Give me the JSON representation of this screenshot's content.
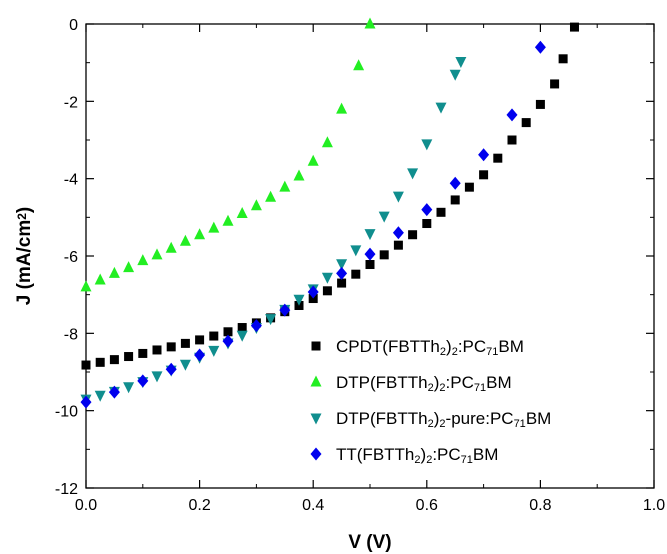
{
  "chart_data": {
    "type": "scatter",
    "xlabel": "V (V)",
    "ylabel": "J (mA/cm²)",
    "xlim": [
      0.0,
      1.0
    ],
    "ylim": [
      -12,
      0
    ],
    "xticks": [
      "0.0",
      "0.2",
      "0.4",
      "0.6",
      "0.8",
      "1.0"
    ],
    "yticks": [
      "0",
      "-2",
      "-4",
      "-6",
      "-8",
      "-10",
      "-12"
    ],
    "legend_position": "bottom-right",
    "grid": false,
    "series": [
      {
        "name": "CPDT(FBTTh2)2:PC71BM",
        "marker": "square",
        "color": "#000000",
        "x": [
          0,
          0.025,
          0.05,
          0.075,
          0.1,
          0.125,
          0.15,
          0.175,
          0.2,
          0.225,
          0.25,
          0.275,
          0.3,
          0.325,
          0.35,
          0.375,
          0.4,
          0.425,
          0.45,
          0.475,
          0.5,
          0.525,
          0.55,
          0.575,
          0.6,
          0.625,
          0.65,
          0.675,
          0.7,
          0.725,
          0.75,
          0.775,
          0.8,
          0.825,
          0.84,
          0.86
        ],
        "y": [
          -8.82,
          -8.75,
          -8.68,
          -8.6,
          -8.52,
          -8.43,
          -8.35,
          -8.26,
          -8.17,
          -8.07,
          -7.96,
          -7.85,
          -7.73,
          -7.6,
          -7.44,
          -7.28,
          -7.1,
          -6.9,
          -6.7,
          -6.47,
          -6.22,
          -5.97,
          -5.72,
          -5.45,
          -5.16,
          -4.87,
          -4.55,
          -4.22,
          -3.9,
          -3.47,
          -3.0,
          -2.55,
          -2.08,
          -1.55,
          -0.9,
          -0.08
        ]
      },
      {
        "name": "DTP(FBTTh2)2:PC71BM",
        "marker": "triangle-up",
        "color": "#22ee22",
        "x": [
          0,
          0.025,
          0.05,
          0.075,
          0.1,
          0.125,
          0.15,
          0.175,
          0.2,
          0.225,
          0.25,
          0.275,
          0.3,
          0.325,
          0.35,
          0.375,
          0.4,
          0.425,
          0.45,
          0.48,
          0.5
        ],
        "y": [
          -6.8,
          -6.62,
          -6.45,
          -6.3,
          -6.12,
          -5.97,
          -5.8,
          -5.62,
          -5.45,
          -5.28,
          -5.1,
          -4.9,
          -4.7,
          -4.48,
          -4.22,
          -3.93,
          -3.55,
          -3.07,
          -2.2,
          -1.08,
          0.0
        ]
      },
      {
        "name": "DTP(FBTTh2)2-pure:PC71BM",
        "marker": "triangle-down",
        "color": "#108e8e",
        "x": [
          0,
          0.025,
          0.05,
          0.075,
          0.1,
          0.125,
          0.15,
          0.175,
          0.2,
          0.225,
          0.25,
          0.275,
          0.3,
          0.325,
          0.35,
          0.375,
          0.4,
          0.425,
          0.45,
          0.475,
          0.5,
          0.525,
          0.55,
          0.575,
          0.6,
          0.625,
          0.65,
          0.66
        ],
        "y": [
          -9.7,
          -9.6,
          -9.5,
          -9.38,
          -9.25,
          -9.1,
          -8.95,
          -8.8,
          -8.62,
          -8.44,
          -8.25,
          -8.05,
          -7.85,
          -7.62,
          -7.38,
          -7.12,
          -6.85,
          -6.55,
          -6.2,
          -5.84,
          -5.42,
          -4.97,
          -4.45,
          -3.85,
          -3.1,
          -2.15,
          -1.3,
          -0.97
        ]
      },
      {
        "name": "TT(FBTTh2)2:PC71BM",
        "marker": "diamond",
        "color": "#0000ee",
        "x": [
          0,
          0.05,
          0.1,
          0.15,
          0.2,
          0.25,
          0.3,
          0.35,
          0.4,
          0.45,
          0.5,
          0.55,
          0.6,
          0.65,
          0.7,
          0.75,
          0.8
        ],
        "y": [
          -9.78,
          -9.52,
          -9.23,
          -8.93,
          -8.56,
          -8.2,
          -7.8,
          -7.4,
          -6.93,
          -6.45,
          -5.95,
          -5.4,
          -4.8,
          -4.12,
          -3.38,
          -2.35,
          -0.6
        ]
      }
    ],
    "legend": [
      {
        "parts": [
          [
            "CPDT(FBTTh",
            "n"
          ],
          [
            "2",
            "sub"
          ],
          [
            ")",
            "n"
          ],
          [
            "2",
            "sub"
          ],
          [
            ":PC",
            "n"
          ],
          [
            "71",
            "sub"
          ],
          [
            "BM",
            "n"
          ]
        ]
      },
      {
        "parts": [
          [
            "DTP(FBTTh",
            "n"
          ],
          [
            "2",
            "sub"
          ],
          [
            ")",
            "n"
          ],
          [
            "2",
            "sub"
          ],
          [
            ":PC",
            "n"
          ],
          [
            "71",
            "sub"
          ],
          [
            "BM",
            "n"
          ]
        ]
      },
      {
        "parts": [
          [
            "DTP(FBTTh",
            "n"
          ],
          [
            "2",
            "sub"
          ],
          [
            ")",
            "n"
          ],
          [
            "2",
            "sub"
          ],
          [
            "-pure:PC",
            "n"
          ],
          [
            "71",
            "sub"
          ],
          [
            "BM",
            "n"
          ]
        ]
      },
      {
        "parts": [
          [
            "TT(FBTTh",
            "n"
          ],
          [
            "2",
            "sub"
          ],
          [
            ")",
            "n"
          ],
          [
            "2",
            "sub"
          ],
          [
            ":PC",
            "n"
          ],
          [
            "71",
            "sub"
          ],
          [
            "BM",
            "n"
          ]
        ]
      }
    ],
    "ylabel_parts": [
      [
        "J (mA/cm",
        "n"
      ],
      [
        "2",
        "sup"
      ],
      [
        ")",
        "n"
      ]
    ]
  }
}
